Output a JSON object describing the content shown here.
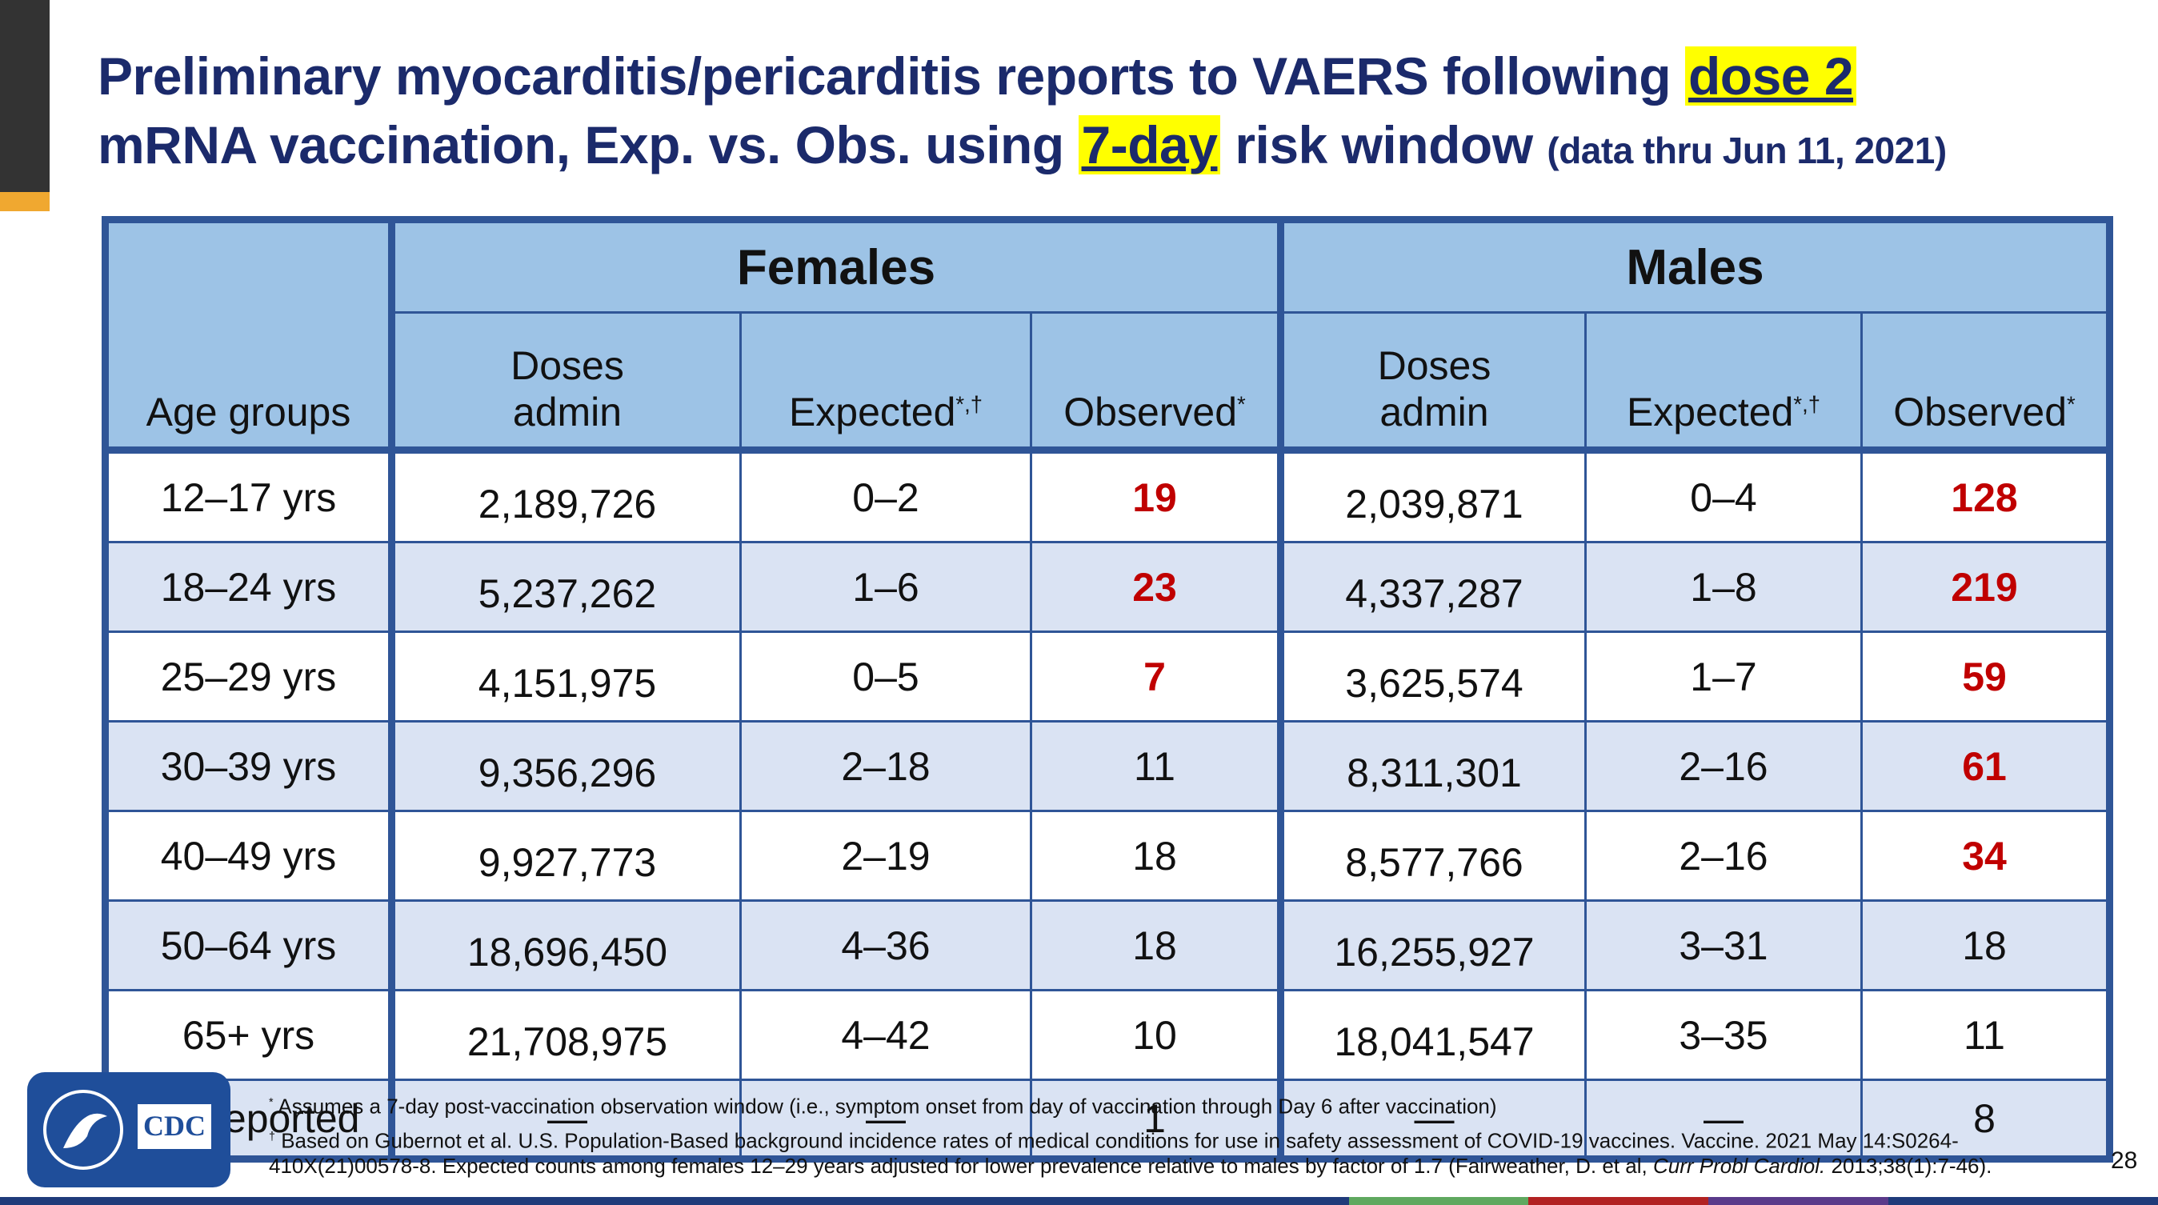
{
  "title": {
    "line1": "Preliminary myocarditis/pericarditis reports to VAERS following",
    "highlight1": "dose 2",
    "line2": "mRNA vaccination, Exp. vs. Obs. using",
    "highlight2": "7-day",
    "line2_end": "risk window",
    "note": "(data thru Jun 11, 2021)"
  },
  "table": {
    "age_header": "Age groups",
    "groups": [
      "Females",
      "Males"
    ],
    "columns": [
      {
        "label": "Doses admin"
      },
      {
        "label": "Expected",
        "sup": "*,†"
      },
      {
        "label": "Observed",
        "sup": "*"
      }
    ],
    "flag_color": "#c00000",
    "rows": [
      {
        "age": "12–17 yrs",
        "cells": [
          [
            "2,189,726",
            "0–2",
            19
          ],
          [
            "2,039,871",
            "0–4",
            128
          ]
        ],
        "flagged": [
          true,
          true
        ]
      },
      {
        "age": "18–24 yrs",
        "cells": [
          [
            "5,237,262",
            "1–6",
            23
          ],
          [
            "4,337,287",
            "1–8",
            219
          ]
        ],
        "flagged": [
          true,
          true
        ]
      },
      {
        "age": "25–29 yrs",
        "cells": [
          [
            "4,151,975",
            "0–5",
            7
          ],
          [
            "3,625,574",
            "1–7",
            59
          ]
        ],
        "flagged": [
          true,
          true
        ]
      },
      {
        "age": "30–39 yrs",
        "cells": [
          [
            "9,356,296",
            "2–18",
            11
          ],
          [
            "8,311,301",
            "2–16",
            61
          ]
        ],
        "flagged": [
          false,
          true
        ]
      },
      {
        "age": "40–49 yrs",
        "cells": [
          [
            "9,927,773",
            "2–19",
            18
          ],
          [
            "8,577,766",
            "2–16",
            34
          ]
        ],
        "flagged": [
          false,
          true
        ]
      },
      {
        "age": "50–64 yrs",
        "cells": [
          [
            "18,696,450",
            "4–36",
            18
          ],
          [
            "16,255,927",
            "3–31",
            18
          ]
        ],
        "flagged": [
          false,
          false
        ]
      },
      {
        "age": "65+ yrs",
        "cells": [
          [
            "21,708,975",
            "4–42",
            10
          ],
          [
            "18,041,547",
            "3–35",
            11
          ]
        ],
        "flagged": [
          false,
          false
        ]
      },
      {
        "age": "Not reported",
        "cells": [
          [
            "—",
            "—",
            1
          ],
          [
            "—",
            "—",
            8
          ]
        ],
        "flagged": [
          false,
          false
        ]
      }
    ]
  },
  "footnotes": [
    {
      "sup": "*",
      "text": "Assumes a 7-day post-vaccination observation window (i.e., symptom onset from day of vaccination through Day 6 after vaccination)"
    },
    {
      "sup": "†",
      "text": "Based on Gubernot et al. U.S. Population-Based background incidence rates of medical conditions for use in safety assessment of COVID-19 vaccines. Vaccine. 2021 May 14:S0264-410X(21)00578-8. Expected counts among females 12–29 years adjusted for lower prevalence relative to males by factor of 1.7 (Fairweather, D. et al,",
      "italic": "Curr Probl Cardiol.",
      "end": "2013;38(1):7-46)."
    }
  ],
  "logo": {
    "text": "CDC"
  },
  "page_number": "28"
}
